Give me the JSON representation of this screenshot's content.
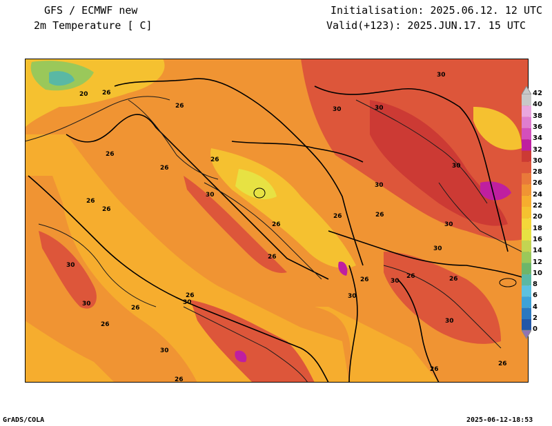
{
  "header": {
    "model": "GFS / ECMWF new",
    "variable": "2m Temperature [ C]",
    "init": "Initialisation: 2025.06.12. 12 UTC",
    "valid": "Valid(+123): 2025.JUN.17. 15 UTC"
  },
  "footer": {
    "credit": "GrADS/COLA",
    "timestamp": "2025-06-12-18:53"
  },
  "colorbar": {
    "levels": [
      "0",
      "2",
      "4",
      "6",
      "8",
      "10",
      "12",
      "14",
      "16",
      "18",
      "20",
      "22",
      "24",
      "26",
      "28",
      "30",
      "32",
      "34",
      "36",
      "38",
      "40",
      "42"
    ],
    "colors": [
      "#8f74b5",
      "#2357a8",
      "#2a78c0",
      "#3da2d8",
      "#5cc1e0",
      "#5ab8a4",
      "#6db66a",
      "#9ac85a",
      "#c3d452",
      "#e7e243",
      "#f4d73a",
      "#f5c130",
      "#f6ad2e",
      "#f09433",
      "#e9793a",
      "#dd563a",
      "#cc3a34",
      "#bf1fa0",
      "#d44fbb",
      "#e07dcf",
      "#eaa6de",
      "#c8c8c8"
    ]
  },
  "contour_labels": [
    "20",
    "26",
    "26",
    "26",
    "26",
    "26",
    "26",
    "26",
    "26",
    "26",
    "26",
    "26",
    "26",
    "26",
    "26",
    "26",
    "26",
    "26",
    "26",
    "26",
    "26",
    "30",
    "30",
    "30",
    "30",
    "30",
    "30",
    "30",
    "30",
    "30",
    "30",
    "30",
    "30",
    "30",
    "30",
    "30"
  ]
}
